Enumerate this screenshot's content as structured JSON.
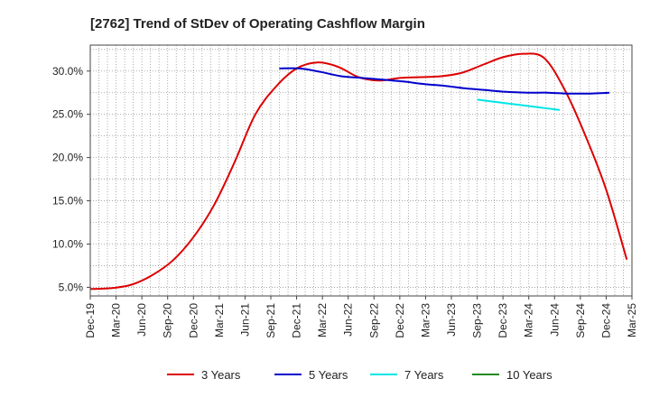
{
  "chart_data": {
    "type": "line",
    "title": "[2762]  Trend of StDev of Operating Cashflow Margin",
    "xlabel": "",
    "ylabel": "",
    "x_ticks": [
      "Dec-19",
      "Mar-20",
      "Jun-20",
      "Sep-20",
      "Dec-20",
      "Mar-21",
      "Jun-21",
      "Sep-21",
      "Dec-21",
      "Mar-22",
      "Jun-22",
      "Sep-22",
      "Dec-22",
      "Mar-23",
      "Jun-23",
      "Sep-23",
      "Dec-23",
      "Mar-24",
      "Jun-24",
      "Sep-24",
      "Dec-24",
      "Mar-25"
    ],
    "y_ticks": [
      "5.0%",
      "10.0%",
      "15.0%",
      "20.0%",
      "25.0%",
      "30.0%"
    ],
    "ylim": [
      4.0,
      33.0
    ],
    "grid": true,
    "legend_position": "bottom",
    "series": [
      {
        "name": "3 Years",
        "color": "#dd0000",
        "start_index": 0,
        "values": [
          4.8,
          4.9,
          5.3,
          6.4,
          8.1,
          10.8,
          14.5,
          19.5,
          25.0,
          28.2,
          30.3,
          31.0,
          30.5,
          29.3,
          28.9,
          29.2,
          29.3,
          29.4,
          29.8,
          30.7,
          31.6,
          32.0,
          31.5,
          27.8,
          22.5,
          16.3,
          8.2
        ]
      },
      {
        "name": "5 Years",
        "color": "#0000cc",
        "start_index": 7.33,
        "values": [
          30.3,
          30.3,
          29.9,
          29.4,
          29.2,
          29.0,
          28.8,
          28.5,
          28.3,
          28.0,
          27.8,
          27.6,
          27.5,
          27.5,
          27.4,
          27.4,
          27.5
        ]
      },
      {
        "name": "7 Years",
        "color": "#00e5e5",
        "start_index": 15.0,
        "values": [
          26.7,
          26.4,
          26.1,
          25.8,
          25.5
        ]
      },
      {
        "name": "10 Years",
        "color": "#228b22",
        "start_index": 0,
        "values": []
      }
    ]
  }
}
